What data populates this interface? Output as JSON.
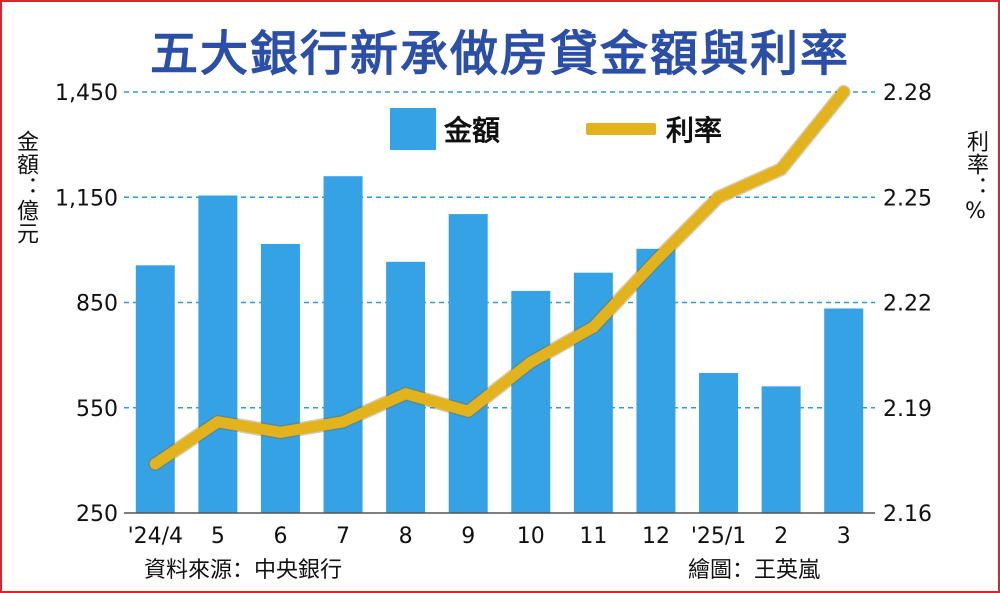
{
  "title": "五大銀行新承做房貸金額與利率",
  "y_left_label": "金額：億元",
  "y_right_label": "利率：%",
  "legend": {
    "amount": "金額",
    "rate": "利率"
  },
  "source": "資料來源：中央銀行",
  "credit": "繪圖：王英嵐",
  "colors": {
    "bar": "#36a2e6",
    "line": "#e2b31d",
    "title": "#2b4fa6",
    "border": "#d9252c",
    "grid": "#2f9bd9"
  },
  "chart_data": {
    "type": "bar",
    "categories": [
      "'24/4",
      "5",
      "6",
      "7",
      "8",
      "9",
      "10",
      "11",
      "12",
      "'25/1",
      "2",
      "3"
    ],
    "series": [
      {
        "name": "金額",
        "type": "bar",
        "axis": "left",
        "values": [
          956,
          1155,
          1017,
          1210,
          966,
          1102,
          883,
          935,
          1003,
          649,
          611,
          833
        ]
      },
      {
        "name": "利率",
        "type": "line",
        "axis": "right",
        "values": [
          2.174,
          2.186,
          2.183,
          2.186,
          2.194,
          2.189,
          2.203,
          2.213,
          2.232,
          2.25,
          2.258,
          2.28
        ]
      }
    ],
    "y_left": {
      "min": 250,
      "max": 1450,
      "ticks": [
        "250",
        "550",
        "850",
        "1,150",
        "1,450"
      ]
    },
    "y_right": {
      "min": 2.16,
      "max": 2.28,
      "ticks": [
        "2.16",
        "2.19",
        "2.22",
        "2.25",
        "2.28"
      ]
    },
    "grid": true,
    "legend_position": "top"
  }
}
